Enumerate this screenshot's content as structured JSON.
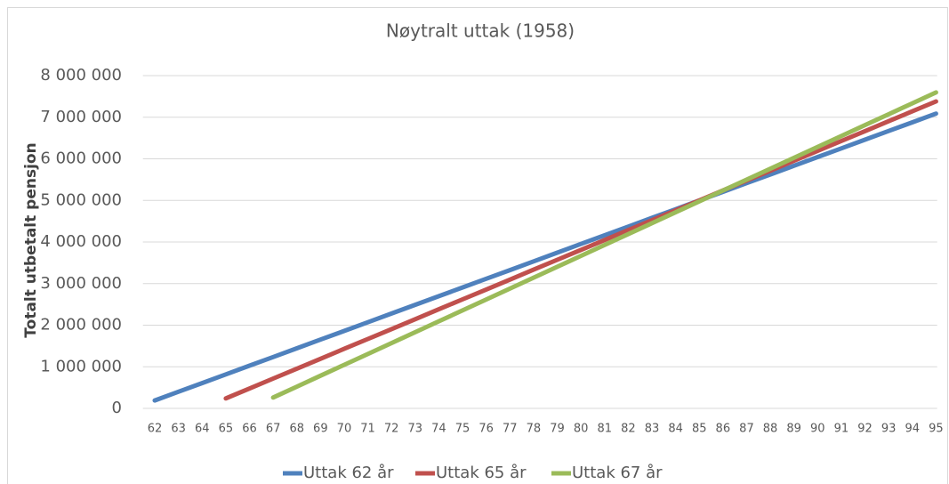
{
  "chart_data": {
    "type": "line",
    "title": "Nøytralt uttak (1958)",
    "y_label": "Totalt utbetalt pensjon",
    "categories": [
      "62",
      "63",
      "64",
      "65",
      "66",
      "67",
      "68",
      "69",
      "70",
      "71",
      "72",
      "73",
      "74",
      "75",
      "76",
      "77",
      "78",
      "79",
      "80",
      "81",
      "82",
      "83",
      "84",
      "85",
      "86",
      "87",
      "88",
      "89",
      "90",
      "91",
      "92",
      "93",
      "94",
      "95"
    ],
    "series": [
      {
        "name": "Uttak 62 år",
        "color": "#4f81bd",
        "values": [
          190000,
          399000,
          608000,
          817000,
          1026000,
          1235000,
          1444000,
          1653000,
          1862000,
          2071000,
          2280000,
          2489000,
          2698000,
          2907000,
          3116000,
          3325000,
          3534000,
          3743000,
          3952000,
          4161000,
          4370000,
          4579000,
          4788000,
          4997000,
          5206000,
          5415000,
          5624000,
          5833000,
          6042000,
          6251000,
          6460000,
          6669000,
          6878000,
          7087000
        ]
      },
      {
        "name": "Uttak 65 år",
        "color": "#c0504d",
        "values": [
          null,
          null,
          null,
          240000,
          478000,
          716000,
          954000,
          1192000,
          1430000,
          1668000,
          1906000,
          2144000,
          2382000,
          2620000,
          2858000,
          3096000,
          3334000,
          3572000,
          3810000,
          4048000,
          4286000,
          4524000,
          4762000,
          5000000,
          5238000,
          5476000,
          5714000,
          5952000,
          6190000,
          6428000,
          6666000,
          6904000,
          7142000,
          7380000
        ]
      },
      {
        "name": "Uttak 67 år",
        "color": "#9bbb59",
        "values": [
          null,
          null,
          null,
          null,
          null,
          260000,
          522000,
          784000,
          1046000,
          1308000,
          1570000,
          1832000,
          2094000,
          2356000,
          2618000,
          2880000,
          3142000,
          3404000,
          3666000,
          3928000,
          4190000,
          4452000,
          4714000,
          4976000,
          5238000,
          5500000,
          5762000,
          6024000,
          6286000,
          6548000,
          6810000,
          7072000,
          7334000,
          7596000
        ]
      }
    ],
    "ylim": [
      0,
      8000000
    ],
    "yticks": [
      0,
      {
        "value": 1000000,
        "label": "1 000 000"
      },
      {
        "value": 2000000,
        "label": "2 000 000"
      },
      {
        "value": 3000000,
        "label": "3 000 000"
      },
      {
        "value": 4000000,
        "label": "4 000 000"
      },
      {
        "value": 5000000,
        "label": "5 000 000"
      },
      {
        "value": 6000000,
        "label": "6 000 000"
      },
      {
        "value": 7000000,
        "label": "7 000 000"
      },
      {
        "value": 8000000,
        "label": "8 000 000"
      }
    ],
    "grid": true,
    "legend": "bottom"
  }
}
